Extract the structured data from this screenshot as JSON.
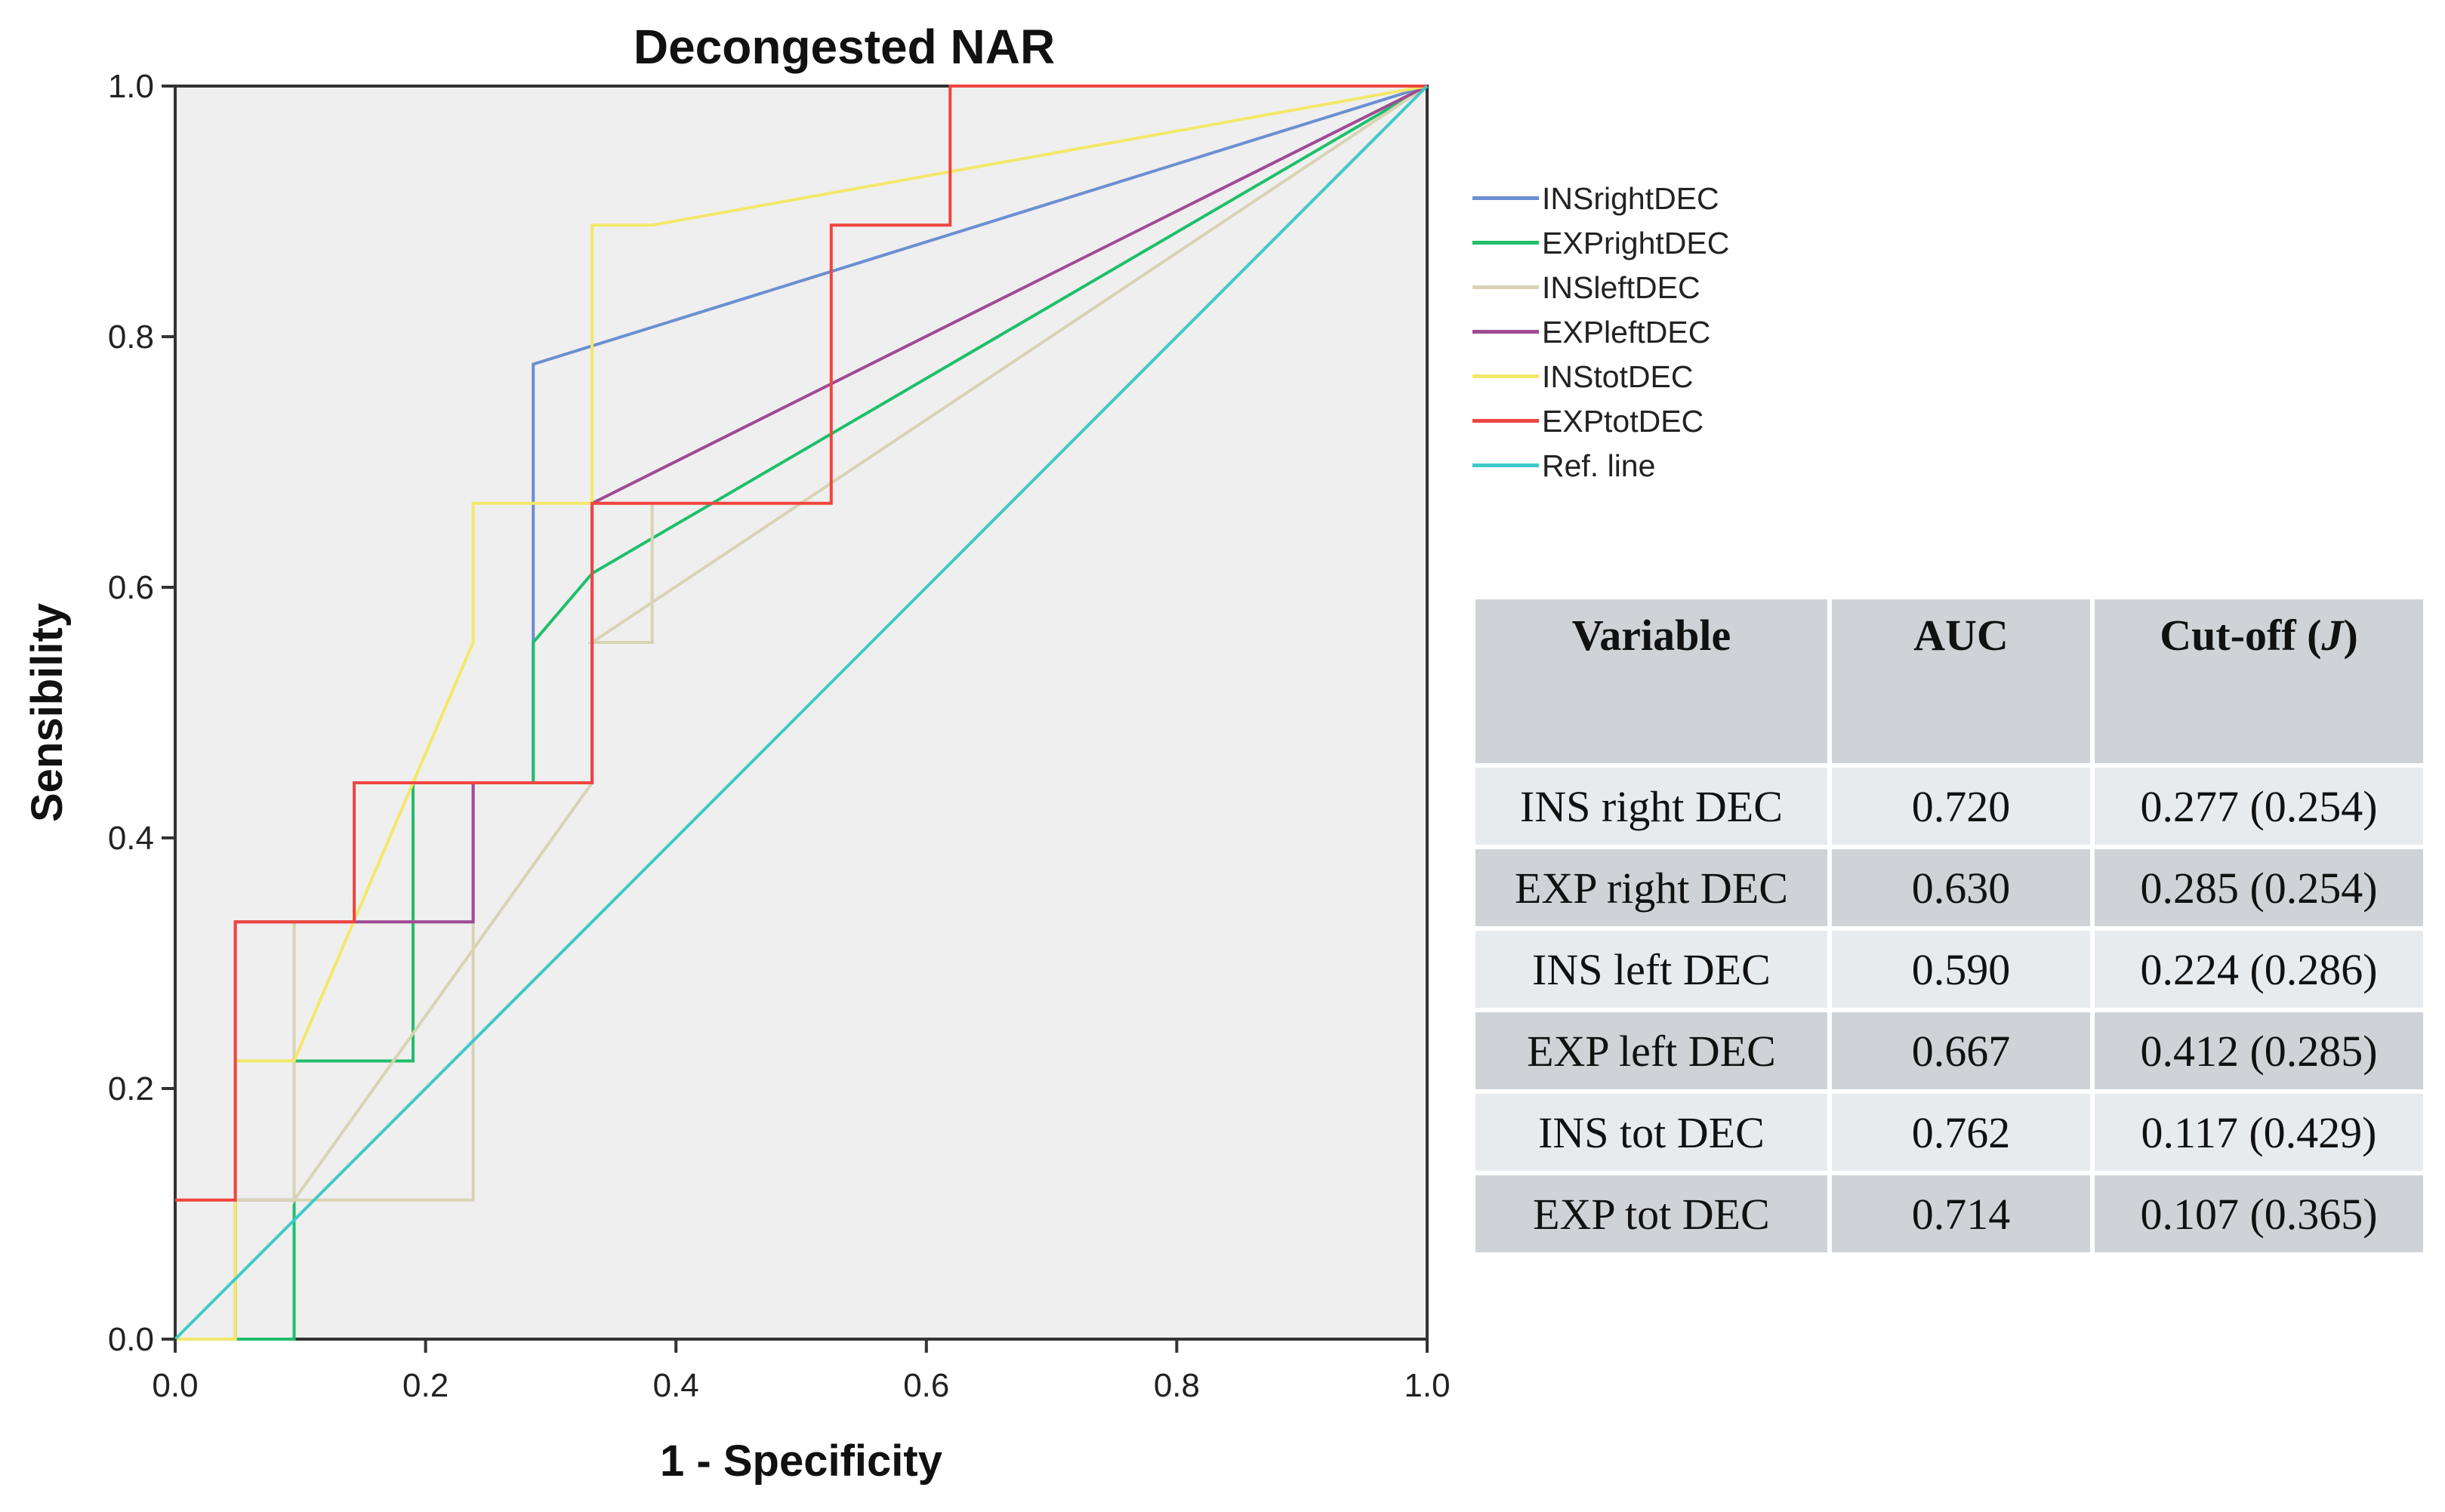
{
  "chart_data": {
    "type": "line",
    "title": "Decongested NAR",
    "xlabel": "1 - Specificity",
    "ylabel": "Sensibility",
    "xlim": [
      0,
      1
    ],
    "ylim": [
      0,
      1
    ],
    "x_ticks": [
      "0.0",
      "0.2",
      "0.4",
      "0.6",
      "0.8",
      "1.0"
    ],
    "y_ticks": [
      "0.0",
      "0.2",
      "0.4",
      "0.6",
      "0.8",
      "1.0"
    ],
    "grid": false,
    "legend_position": "right",
    "series": [
      {
        "name": "INSrightDEC",
        "color": "#6b8fd1",
        "points": [
          [
            0,
            0
          ],
          [
            0.048,
            0
          ],
          [
            0.048,
            0.111
          ],
          [
            0.095,
            0.111
          ],
          [
            0.095,
            0.222
          ],
          [
            0.19,
            0.222
          ],
          [
            0.19,
            0.333
          ],
          [
            0.238,
            0.333
          ],
          [
            0.238,
            0.444
          ],
          [
            0.286,
            0.444
          ],
          [
            0.286,
            0.778
          ],
          [
            1,
            1
          ]
        ]
      },
      {
        "name": "EXPrightDEC",
        "color": "#1fbf6a",
        "points": [
          [
            0,
            0
          ],
          [
            0.095,
            0
          ],
          [
            0.095,
            0.111
          ],
          [
            0.095,
            0.222
          ],
          [
            0.19,
            0.222
          ],
          [
            0.19,
            0.444
          ],
          [
            0.286,
            0.444
          ],
          [
            0.286,
            0.556
          ],
          [
            0.333,
            0.611
          ],
          [
            1,
            1
          ]
        ]
      },
      {
        "name": "INSleftDEC",
        "color": "#d8d3b4",
        "points": [
          [
            0,
            0
          ],
          [
            0.048,
            0
          ],
          [
            0.048,
            0.111
          ],
          [
            0.238,
            0.111
          ],
          [
            0.238,
            0.333
          ],
          [
            0.095,
            0.333
          ],
          [
            0.095,
            0.111
          ],
          [
            0.333,
            0.444
          ],
          [
            0.333,
            0.667
          ],
          [
            0.381,
            0.667
          ],
          [
            0.381,
            0.556
          ],
          [
            0.333,
            0.556
          ],
          [
            1,
            1
          ]
        ]
      },
      {
        "name": "EXPleftDEC",
        "color": "#a04a94",
        "points": [
          [
            0,
            0
          ],
          [
            0.048,
            0
          ],
          [
            0.048,
            0.333
          ],
          [
            0.238,
            0.333
          ],
          [
            0.238,
            0.444
          ],
          [
            0.333,
            0.444
          ],
          [
            0.333,
            0.667
          ],
          [
            1,
            1
          ]
        ]
      },
      {
        "name": "INStotDEC",
        "color": "#f3e86a",
        "points": [
          [
            0,
            0
          ],
          [
            0.048,
            0
          ],
          [
            0.048,
            0.222
          ],
          [
            0.095,
            0.222
          ],
          [
            0.19,
            0.444
          ],
          [
            0.238,
            0.556
          ],
          [
            0.238,
            0.667
          ],
          [
            0.333,
            0.667
          ],
          [
            0.333,
            0.889
          ],
          [
            0.381,
            0.889
          ],
          [
            1,
            1
          ]
        ]
      },
      {
        "name": "EXPtotDEC",
        "color": "#f0443f",
        "points": [
          [
            0,
            0.111
          ],
          [
            0.048,
            0.111
          ],
          [
            0.048,
            0.333
          ],
          [
            0.143,
            0.333
          ],
          [
            0.143,
            0.444
          ],
          [
            0.333,
            0.444
          ],
          [
            0.333,
            0.667
          ],
          [
            0.524,
            0.667
          ],
          [
            0.524,
            0.889
          ],
          [
            0.619,
            0.889
          ],
          [
            0.619,
            1
          ],
          [
            1,
            1
          ]
        ]
      },
      {
        "name": "Ref. line",
        "color": "#3fc9c8",
        "points": [
          [
            0,
            0
          ],
          [
            1,
            1
          ]
        ]
      }
    ]
  },
  "table": {
    "headers": [
      "Variable",
      "AUC",
      "Cut-off (J)"
    ],
    "rows": [
      [
        "INS right DEC",
        "0.720",
        "0.277 (0.254)"
      ],
      [
        "EXP right DEC",
        "0.630",
        "0.285 (0.254)"
      ],
      [
        "INS left DEC",
        "0.590",
        "0.224 (0.286)"
      ],
      [
        "EXP left DEC",
        "0.667",
        "0.412 (0.285)"
      ],
      [
        "INS tot DEC",
        "0.762",
        "0.117 (0.429)"
      ],
      [
        "EXP tot DEC",
        "0.714",
        "0.107 (0.365)"
      ]
    ]
  }
}
